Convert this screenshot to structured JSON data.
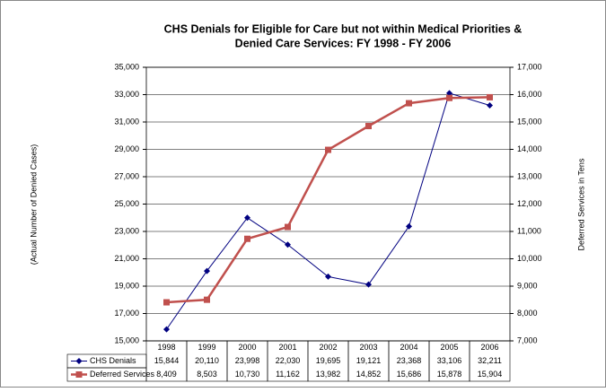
{
  "chart_data": {
    "type": "line",
    "title": [
      "CHS Denials for Eligible for Care but not within Medical Priorities &",
      "Denied Care Services: FY 1998 - FY 2006"
    ],
    "ylabel": "(Actual Number of Denied Cases)",
    "y2label": "Deferred Services in Tens",
    "categories": [
      "1998",
      "1999",
      "2000",
      "2001",
      "2002",
      "2003",
      "2004",
      "2005",
      "2006"
    ],
    "series": [
      {
        "name": "CHS Denials",
        "color": "#000080",
        "marker": "diamond",
        "axis": "y",
        "values": [
          15844,
          20110,
          23998,
          22030,
          19695,
          19121,
          23368,
          33106,
          32211
        ],
        "value_labels": [
          "15,844",
          "20,110",
          "23,998",
          "22,030",
          "19,695",
          "19,121",
          "23,368",
          "33,106",
          "32,211"
        ]
      },
      {
        "name": "Deferred Services",
        "color": "#c0504d",
        "marker": "square",
        "axis": "y2",
        "values": [
          8409,
          8503,
          10730,
          11162,
          13982,
          14852,
          15686,
          15878,
          15904
        ],
        "value_labels": [
          "8,409",
          "8,503",
          "10,730",
          "11,162",
          "13,982",
          "14,852",
          "15,686",
          "15,878",
          "15,904"
        ]
      }
    ],
    "ylim": [
      15000,
      35000
    ],
    "yticks": [
      {
        "value": 15000,
        "label": "15,000"
      },
      {
        "value": 17000,
        "label": "17,000"
      },
      {
        "value": 19000,
        "label": "19,000"
      },
      {
        "value": 21000,
        "label": "21,000"
      },
      {
        "value": 23000,
        "label": "23,000"
      },
      {
        "value": 25000,
        "label": "25,000"
      },
      {
        "value": 27000,
        "label": "27,000"
      },
      {
        "value": 29000,
        "label": "29,000"
      },
      {
        "value": 31000,
        "label": "31,000"
      },
      {
        "value": 33000,
        "label": "33,000"
      },
      {
        "value": 35000,
        "label": "35,000"
      }
    ],
    "y2lim": [
      7000,
      17000
    ],
    "y2ticks": [
      {
        "value": 7000,
        "label": "7,000"
      },
      {
        "value": 8000,
        "label": "8,000"
      },
      {
        "value": 9000,
        "label": "9,000"
      },
      {
        "value": 10000,
        "label": "10,000"
      },
      {
        "value": 11000,
        "label": "11,000"
      },
      {
        "value": 12000,
        "label": "12,000"
      },
      {
        "value": 13000,
        "label": "13,000"
      },
      {
        "value": 14000,
        "label": "14,000"
      },
      {
        "value": 15000,
        "label": "15,000"
      },
      {
        "value": 16000,
        "label": "16,000"
      },
      {
        "value": 17000,
        "label": "17,000"
      }
    ],
    "grid": true
  }
}
